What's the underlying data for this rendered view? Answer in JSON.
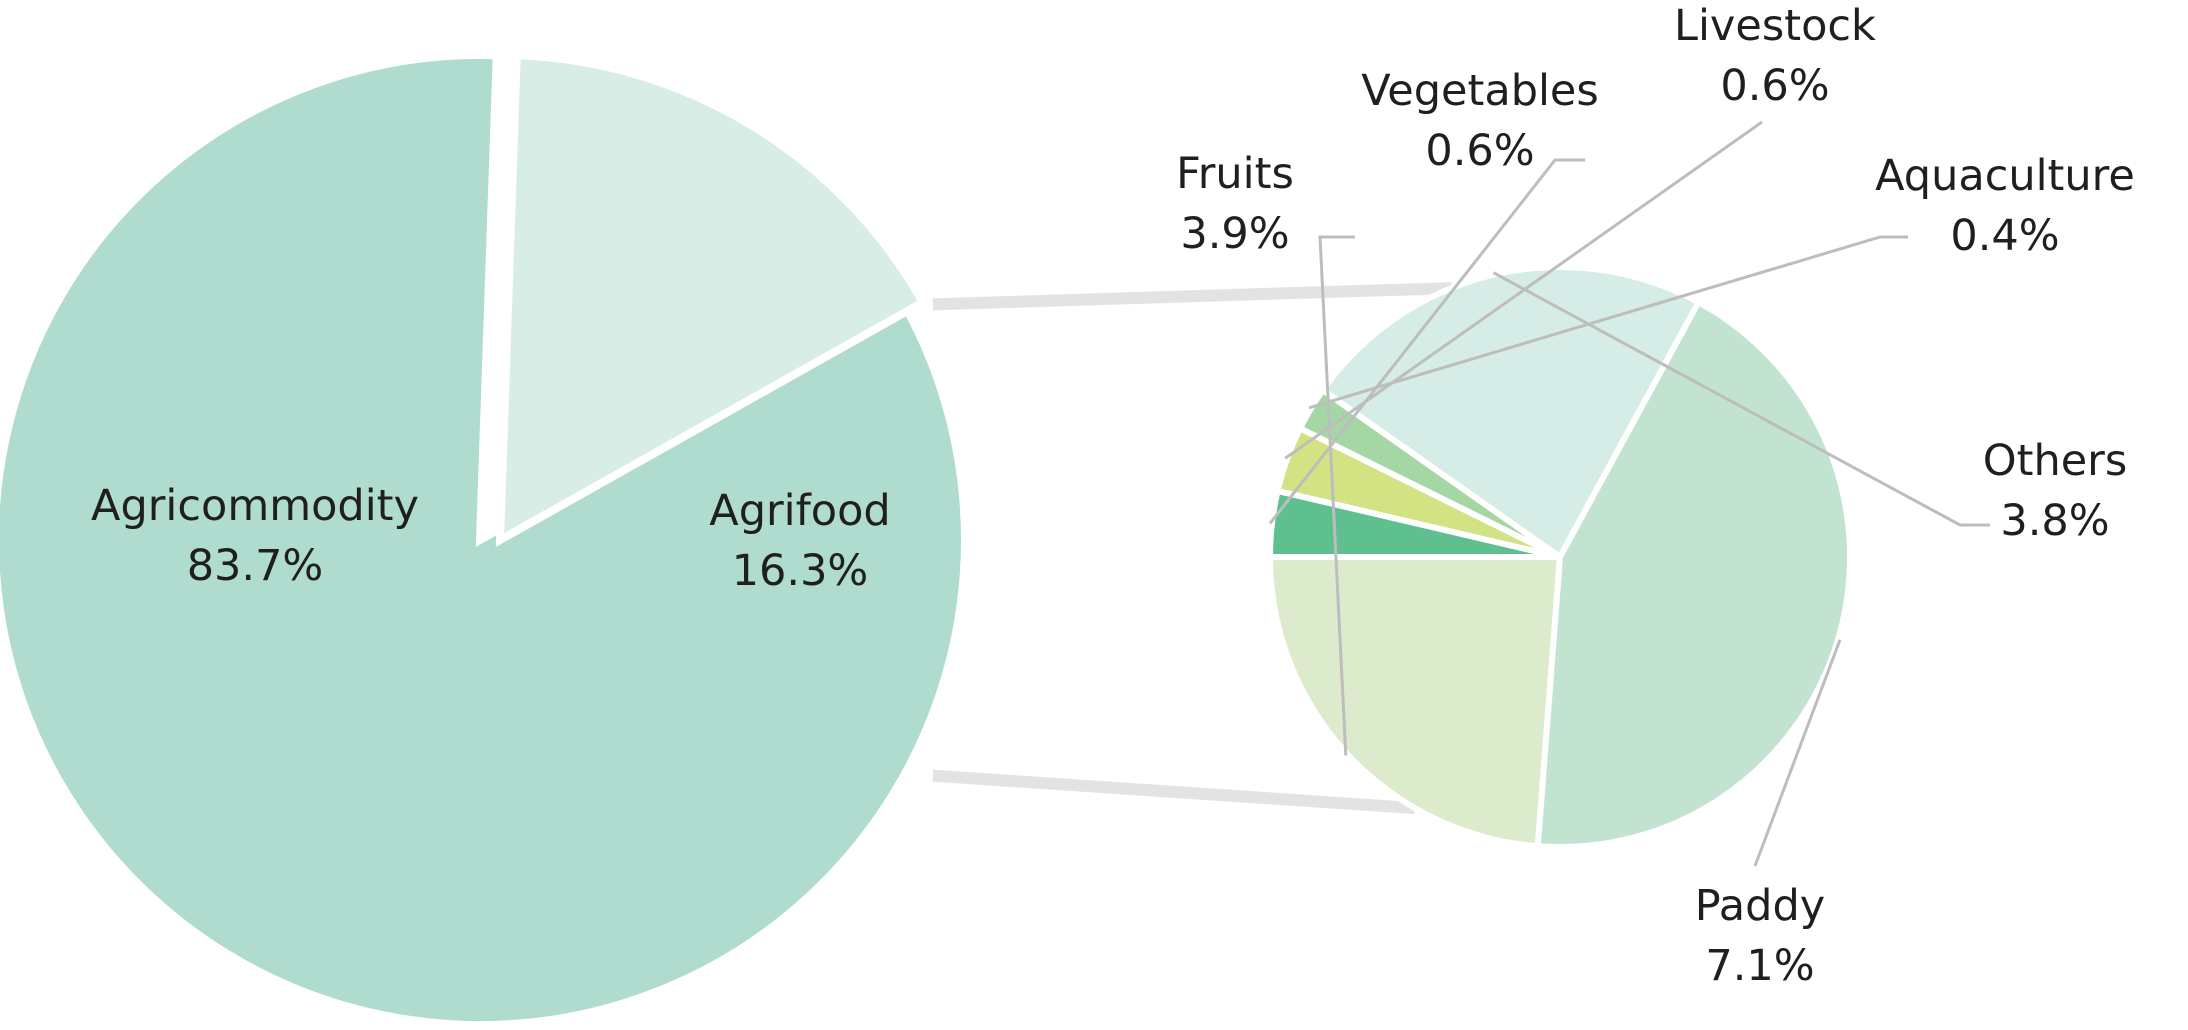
{
  "chart_data": [
    {
      "type": "pie",
      "title": "",
      "slices": [
        {
          "label": "Agricommodity",
          "value": 83.7,
          "display": "83.7%",
          "color": "#afdccf"
        },
        {
          "label": "Agrifood",
          "value": 16.3,
          "display": "16.3%",
          "color": "#d7ede5"
        }
      ]
    },
    {
      "type": "pie",
      "title": "",
      "breakdown_of": "Agrifood",
      "slices": [
        {
          "label": "Fruits",
          "value": 3.9,
          "display": "3.9%",
          "color": "#dcebcc"
        },
        {
          "label": "Vegetables",
          "value": 0.6,
          "display": "0.6%",
          "color": "#5ec08e"
        },
        {
          "label": "Livestock",
          "value": 0.6,
          "display": "0.6%",
          "color": "#d3e283"
        },
        {
          "label": "Aquaculture",
          "value": 0.4,
          "display": "0.4%",
          "color": "#a5d7a5"
        },
        {
          "label": "Others",
          "value": 3.8,
          "display": "3.8%",
          "color": "#d6ece6"
        },
        {
          "label": "Paddy",
          "value": 7.1,
          "display": "7.1%",
          "color": "#c2e3cf"
        }
      ]
    }
  ]
}
